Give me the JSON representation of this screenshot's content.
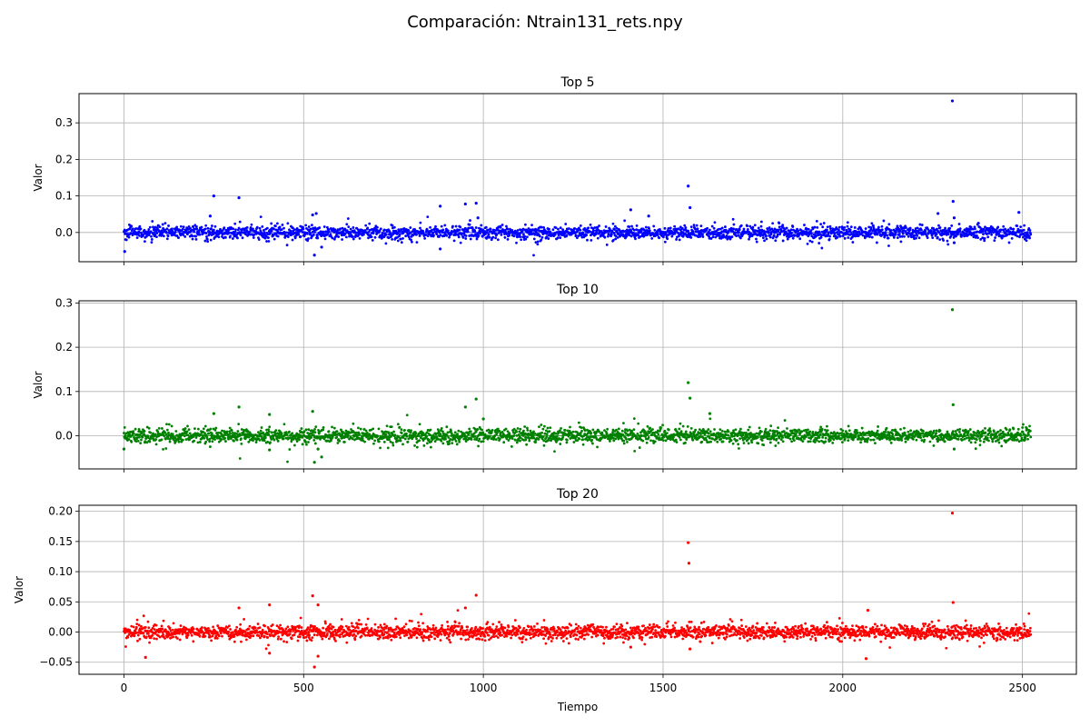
{
  "suptitle": "Comparación: Ntrain131_rets.npy",
  "chart_data": [
    {
      "type": "scatter",
      "title": "Top 5",
      "xlabel": "",
      "ylabel": "Valor",
      "color": "#0000ff",
      "xlim": [
        -125,
        2650
      ],
      "ylim": [
        -0.08,
        0.38
      ],
      "yticks": [
        0.0,
        0.1,
        0.2,
        0.3
      ],
      "ytick_labels": [
        "0.0",
        "0.1",
        "0.2",
        "0.3"
      ],
      "xticks": [
        0,
        500,
        1000,
        1500,
        2000,
        2500
      ],
      "show_xtick_labels": false,
      "grid": true,
      "n_points": 2524,
      "noise_std": 0.009,
      "highlights": [
        {
          "x": 2,
          "y": -0.052
        },
        {
          "x": 250,
          "y": 0.1
        },
        {
          "x": 320,
          "y": 0.095
        },
        {
          "x": 240,
          "y": 0.045
        },
        {
          "x": 525,
          "y": 0.048
        },
        {
          "x": 535,
          "y": 0.052
        },
        {
          "x": 530,
          "y": -0.062
        },
        {
          "x": 550,
          "y": -0.04
        },
        {
          "x": 880,
          "y": 0.072
        },
        {
          "x": 880,
          "y": -0.045
        },
        {
          "x": 950,
          "y": 0.078
        },
        {
          "x": 980,
          "y": 0.08
        },
        {
          "x": 985,
          "y": 0.04
        },
        {
          "x": 1410,
          "y": 0.062
        },
        {
          "x": 1460,
          "y": 0.045
        },
        {
          "x": 1570,
          "y": 0.127
        },
        {
          "x": 1575,
          "y": 0.068
        },
        {
          "x": 2265,
          "y": 0.052
        },
        {
          "x": 2305,
          "y": 0.36
        },
        {
          "x": 2307,
          "y": 0.085
        },
        {
          "x": 2310,
          "y": 0.04
        },
        {
          "x": 2310,
          "y": -0.028
        },
        {
          "x": 2490,
          "y": 0.055
        }
      ]
    },
    {
      "type": "scatter",
      "title": "Top 10",
      "xlabel": "",
      "ylabel": "Valor",
      "color": "#008000",
      "xlim": [
        -125,
        2650
      ],
      "ylim": [
        -0.075,
        0.305
      ],
      "yticks": [
        0.0,
        0.1,
        0.2,
        0.3
      ],
      "ytick_labels": [
        "0.0",
        "0.1",
        "0.2",
        "0.3"
      ],
      "xticks": [
        0,
        500,
        1000,
        1500,
        2000,
        2500
      ],
      "show_xtick_labels": false,
      "grid": true,
      "n_points": 2524,
      "noise_std": 0.008,
      "highlights": [
        {
          "x": 0,
          "y": -0.03
        },
        {
          "x": 250,
          "y": 0.05
        },
        {
          "x": 320,
          "y": 0.065
        },
        {
          "x": 405,
          "y": 0.048
        },
        {
          "x": 405,
          "y": -0.032
        },
        {
          "x": 525,
          "y": 0.055
        },
        {
          "x": 530,
          "y": -0.06
        },
        {
          "x": 550,
          "y": -0.048
        },
        {
          "x": 540,
          "y": -0.03
        },
        {
          "x": 950,
          "y": 0.065
        },
        {
          "x": 980,
          "y": 0.083
        },
        {
          "x": 1000,
          "y": 0.038
        },
        {
          "x": 1570,
          "y": 0.12
        },
        {
          "x": 1575,
          "y": 0.085
        },
        {
          "x": 1630,
          "y": 0.05
        },
        {
          "x": 2305,
          "y": 0.285
        },
        {
          "x": 2307,
          "y": 0.07
        },
        {
          "x": 2310,
          "y": -0.03
        }
      ]
    },
    {
      "type": "scatter",
      "title": "Top 20",
      "xlabel": "Tiempo",
      "ylabel": "Valor",
      "color": "#ff0000",
      "xlim": [
        -125,
        2650
      ],
      "ylim": [
        -0.07,
        0.21
      ],
      "yticks": [
        -0.05,
        0.0,
        0.05,
        0.1,
        0.15,
        0.2
      ],
      "ytick_labels": [
        "−0.05",
        "0.00",
        "0.05",
        "0.10",
        "0.15",
        "0.20"
      ],
      "xticks": [
        0,
        500,
        1000,
        1500,
        2000,
        2500
      ],
      "show_xtick_labels": true,
      "xtick_labels": [
        "0",
        "500",
        "1000",
        "1500",
        "2000",
        "2500"
      ],
      "grid": true,
      "n_points": 2524,
      "noise_std": 0.006,
      "highlights": [
        {
          "x": 60,
          "y": -0.042
        },
        {
          "x": 320,
          "y": 0.04
        },
        {
          "x": 405,
          "y": 0.045
        },
        {
          "x": 405,
          "y": -0.035
        },
        {
          "x": 525,
          "y": 0.06
        },
        {
          "x": 530,
          "y": -0.058
        },
        {
          "x": 540,
          "y": 0.045
        },
        {
          "x": 540,
          "y": -0.04
        },
        {
          "x": 950,
          "y": 0.04
        },
        {
          "x": 980,
          "y": 0.061
        },
        {
          "x": 1410,
          "y": -0.025
        },
        {
          "x": 1570,
          "y": 0.148
        },
        {
          "x": 1572,
          "y": 0.114
        },
        {
          "x": 1575,
          "y": -0.028
        },
        {
          "x": 2070,
          "y": 0.036
        },
        {
          "x": 2065,
          "y": -0.044
        },
        {
          "x": 2305,
          "y": 0.197
        },
        {
          "x": 2307,
          "y": 0.049
        }
      ]
    }
  ]
}
